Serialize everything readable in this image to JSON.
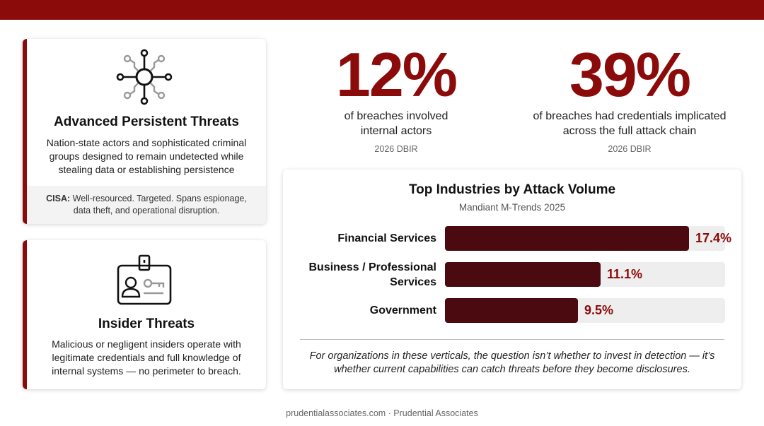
{
  "apt_card": {
    "icon": "network-hub-icon",
    "title": "Advanced Persistent Threats",
    "description": "Nation-state actors and sophisticated criminal groups designed to remain undetected while stealing data or establishing persistence",
    "cisa_label": "CISA:",
    "cisa_text": "Well-resourced. Targeted. Spans espionage, data theft, and operational disruption."
  },
  "insider_card": {
    "icon": "id-badge-icon",
    "title": "Insider Threats",
    "description": "Malicious or negligent insiders operate with legitimate credentials and full knowledge of internal systems — no perimeter to breach."
  },
  "stats": [
    {
      "value": "12%",
      "description": "of breaches involved internal actors",
      "source": "2026 DBIR"
    },
    {
      "value": "39%",
      "description": "of breaches had credentials implicated across the full attack chain",
      "source": "2026 DBIR"
    }
  ],
  "chart_data": {
    "type": "bar",
    "orientation": "horizontal",
    "title": "Top Industries by Attack Volume",
    "subtitle": "Mandiant M-Trends 2025",
    "categories": [
      "Financial Services",
      "Business / Professional Services",
      "Government"
    ],
    "values": [
      17.4,
      11.1,
      9.5
    ],
    "value_labels": [
      "17.4%",
      "11.1%",
      "9.5%"
    ],
    "xlim": [
      0,
      20
    ],
    "footnote": "For organizations in these verticals, the question isn’t whether to invest in detection — it’s whether current capabilities can catch threats before they become disclosures."
  },
  "colors": {
    "accent": "#8b0a0a",
    "bar": "#4a0a0f",
    "track": "#eeeeee"
  },
  "footer": "prudentialassociates.com · Prudential Associates"
}
